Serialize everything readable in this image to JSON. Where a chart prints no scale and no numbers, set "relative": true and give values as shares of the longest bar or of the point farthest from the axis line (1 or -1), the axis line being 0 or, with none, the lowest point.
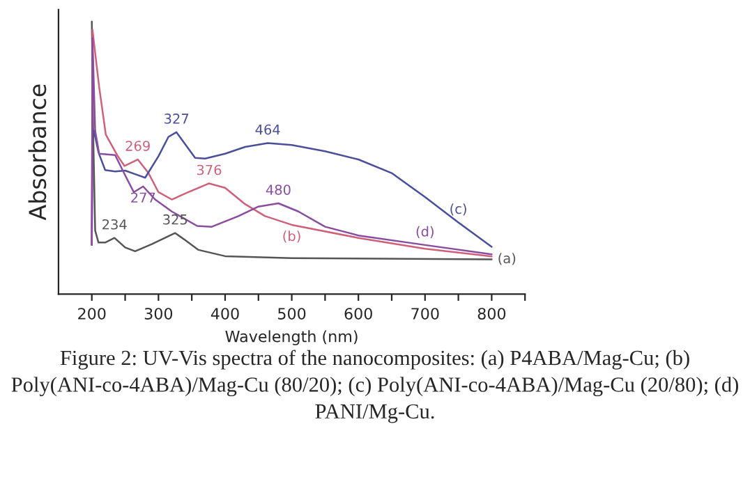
{
  "chart_data": {
    "type": "line",
    "relative": true,
    "xlabel": "Wavelength (nm)",
    "ylabel": "Absorbance",
    "xlim": [
      150,
      850
    ],
    "xticks": [
      200,
      {
        "value": 250,
        "label": null
      },
      300,
      {
        "value": 350,
        "label": null
      },
      400,
      {
        "value": 450,
        "label": null
      },
      500,
      {
        "value": 550,
        "label": null
      },
      600,
      {
        "value": 650,
        "label": null
      },
      700,
      {
        "value": 750,
        "label": null
      },
      800,
      {
        "value": 850,
        "label": null
      }
    ],
    "grid": false,
    "line_style": "solid",
    "marker": "none",
    "series": [
      {
        "color": "#555555",
        "x": [
          200,
          202,
          205,
          210,
          220,
          234,
          250,
          265,
          290,
          325,
          340,
          360,
          400,
          500,
          800
        ],
        "values": [
          1.0,
          0.6,
          0.233,
          0.189,
          0.189,
          0.206,
          0.171,
          0.157,
          0.183,
          0.224,
          0.198,
          0.162,
          0.139,
          0.132,
          0.127
        ]
      },
      {
        "color": "#d0607a",
        "x": [
          200,
          201,
          211,
          221,
          239,
          249,
          269,
          285,
          300,
          320,
          345,
          376,
          400,
          430,
          460,
          500,
          600,
          700,
          800
        ],
        "values": [
          0.18,
          0.97,
          0.76,
          0.585,
          0.506,
          0.47,
          0.494,
          0.444,
          0.374,
          0.347,
          0.374,
          0.406,
          0.39,
          0.33,
          0.286,
          0.254,
          0.206,
          0.166,
          0.138
        ]
      },
      {
        "color": "#4a4f9c",
        "x": [
          200,
          201,
          203,
          210,
          220,
          235,
          250,
          265,
          280,
          300,
          315,
          327,
          340,
          355,
          370,
          400,
          430,
          464,
          500,
          550,
          600,
          650,
          700,
          750,
          800
        ],
        "values": [
          0.18,
          0.6,
          0.6,
          0.52,
          0.455,
          0.45,
          0.453,
          0.44,
          0.427,
          0.506,
          0.577,
          0.594,
          0.55,
          0.5,
          0.497,
          0.515,
          0.54,
          0.554,
          0.547,
          0.524,
          0.494,
          0.444,
          0.356,
          0.263,
          0.173
        ]
      },
      {
        "color": "#8a4ca0",
        "x": [
          200,
          201,
          205,
          211,
          235,
          250,
          263,
          277,
          295,
          320,
          358,
          380,
          420,
          450,
          480,
          510,
          550,
          600,
          700,
          800
        ],
        "values": [
          0.18,
          0.94,
          0.6,
          0.515,
          0.51,
          0.436,
          0.374,
          0.395,
          0.347,
          0.303,
          0.25,
          0.247,
          0.286,
          0.321,
          0.333,
          0.303,
          0.247,
          0.215,
          0.18,
          0.146
        ]
      }
    ],
    "annotations": [
      {
        "text": "327",
        "x": 327,
        "y": 0.594
      },
      {
        "text": "464",
        "x": 464,
        "y": 0.554
      },
      {
        "text": "269",
        "x": 269,
        "y": 0.494
      },
      {
        "text": "277",
        "x": 277,
        "y": 0.395
      },
      {
        "text": "376",
        "x": 376,
        "y": 0.406
      },
      {
        "text": "480",
        "x": 480,
        "y": 0.333
      },
      {
        "text": "(b)",
        "x": 500,
        "y": 0.254
      },
      {
        "text": "234",
        "x": 234,
        "y": 0.206
      },
      {
        "text": "325",
        "x": 325,
        "y": 0.224
      },
      {
        "text": "(c)",
        "x": 750,
        "y": 0.263
      },
      {
        "text": "(d)",
        "x": 700,
        "y": 0.18
      },
      {
        "text": "(a)",
        "x": 800,
        "y": 0.127
      },
      "Figure 2: UV-Vis spectra of the nanocomposites: (a) P4ABA/Mag-Cu; (b) Poly(ANI-co-4ABA)/Mag-Cu (80/20); (c) Poly(ANI-co-4ABA)/Mag-Cu (20/80); (d) PANI/Mg-Cu."
    ]
  }
}
